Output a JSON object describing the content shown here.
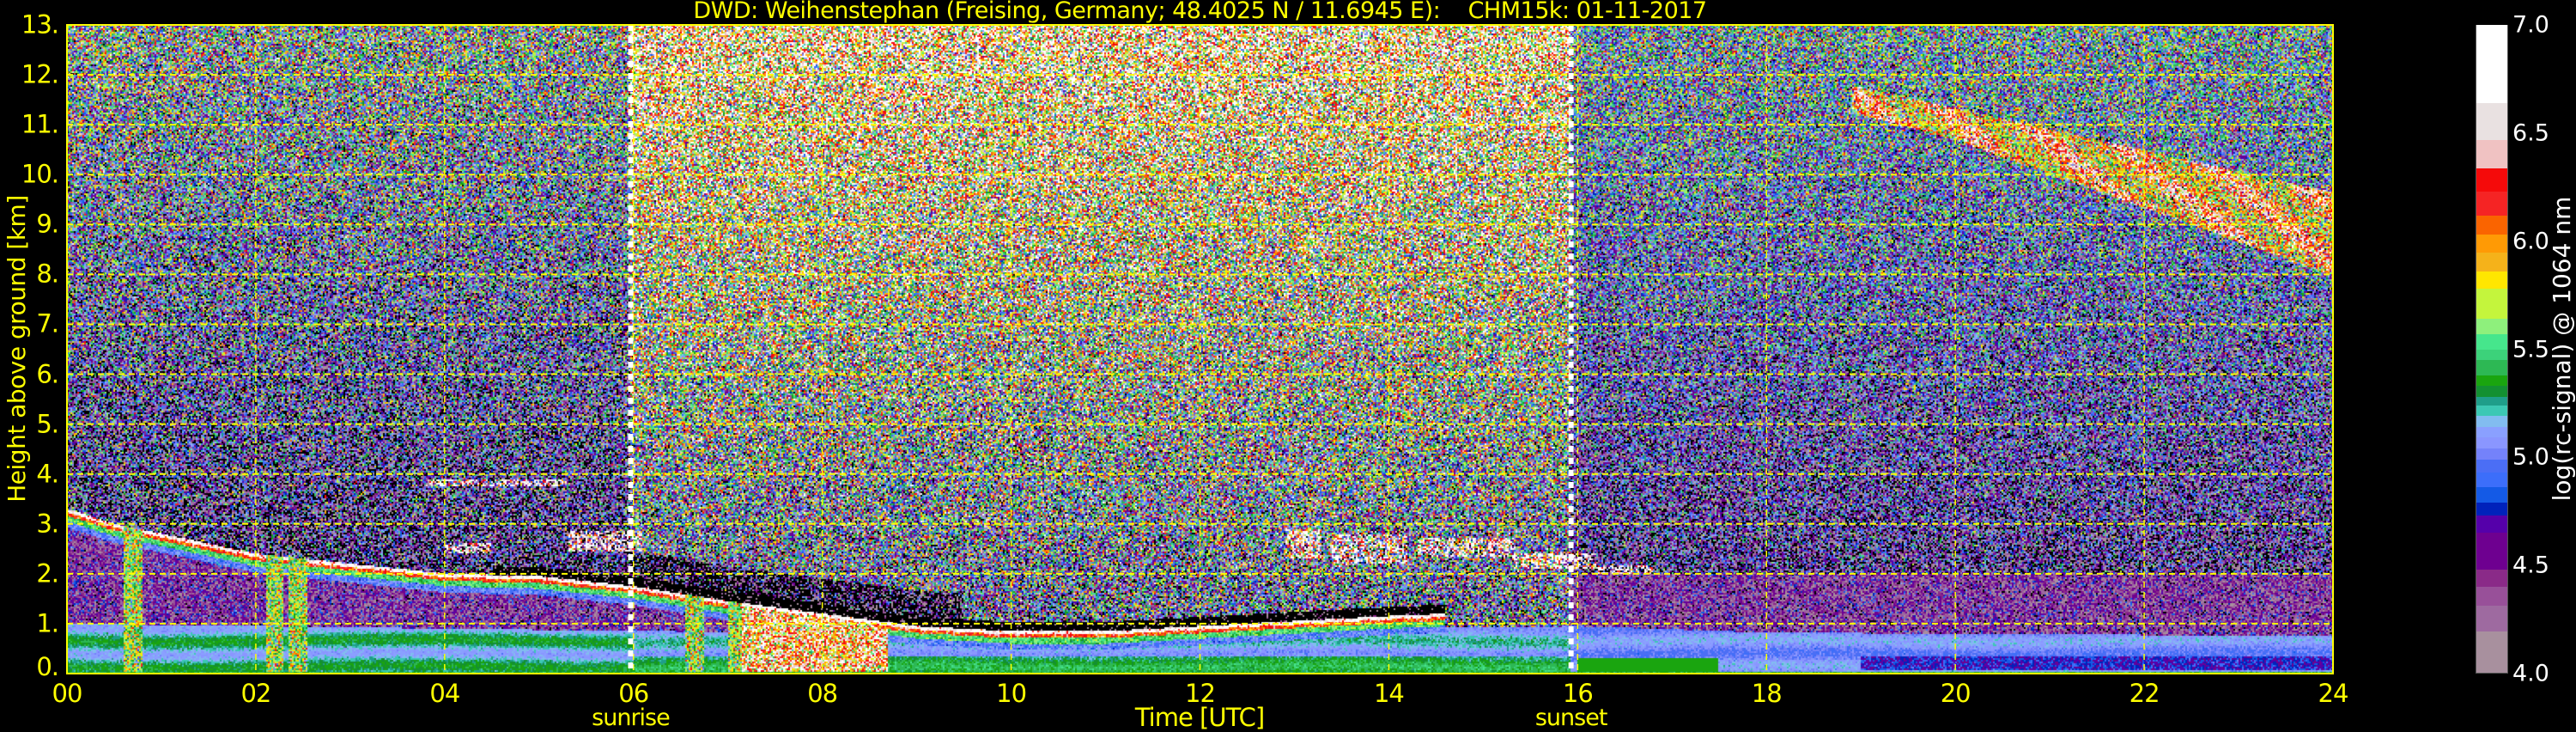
{
  "title": "DWD: Weihenstephan (Freising, Germany; 48.4025 N / 11.6945 E):    CHM15k: 01-11-2017",
  "chart_data": {
    "type": "heatmap",
    "xlabel": "Time [UTC]",
    "ylabel": "Height above ground [km]",
    "xlim": [
      0,
      24
    ],
    "ylim": [
      0,
      13
    ],
    "x_ticks": [
      {
        "value": 0,
        "label": "00"
      },
      {
        "value": 2,
        "label": "02"
      },
      {
        "value": 4,
        "label": "04"
      },
      {
        "value": 6,
        "label": "06"
      },
      {
        "value": 8,
        "label": "08"
      },
      {
        "value": 10,
        "label": "10"
      },
      {
        "value": 12,
        "label": "12"
      },
      {
        "value": 14,
        "label": "14"
      },
      {
        "value": 16,
        "label": "16"
      },
      {
        "value": 18,
        "label": "18"
      },
      {
        "value": 20,
        "label": "20"
      },
      {
        "value": 22,
        "label": "22"
      },
      {
        "value": 24,
        "label": "24"
      }
    ],
    "y_ticks": [
      {
        "value": 0,
        "label": "0."
      },
      {
        "value": 1,
        "label": "1."
      },
      {
        "value": 2,
        "label": "2."
      },
      {
        "value": 3,
        "label": "3."
      },
      {
        "value": 4,
        "label": "4."
      },
      {
        "value": 5,
        "label": "5."
      },
      {
        "value": 6,
        "label": "6."
      },
      {
        "value": 7,
        "label": "7."
      },
      {
        "value": 8,
        "label": "8."
      },
      {
        "value": 9,
        "label": "9."
      },
      {
        "value": 10,
        "label": "10."
      },
      {
        "value": 11,
        "label": "11."
      },
      {
        "value": 12,
        "label": "12."
      },
      {
        "value": 13,
        "label": "13."
      }
    ],
    "grid": true,
    "grid_color": "#ffff00",
    "markers": [
      {
        "label": "sunrise",
        "time": 5.97,
        "color": "#ffffff"
      },
      {
        "label": "sunset",
        "time": 15.93,
        "color": "#ffffff"
      }
    ],
    "colorbar": {
      "label": "log(rc-signal) @ 1064 nm",
      "range": [
        4.0,
        7.0
      ],
      "ticks": [
        "4.0",
        "4.5",
        "5.0",
        "5.5",
        "6.0",
        "6.5",
        "7.0"
      ],
      "below_range_color": "#000000",
      "levels": [
        {
          "from": 4.0,
          "color": "#a8909e"
        },
        {
          "from": 4.19,
          "color": "#9e6aa0"
        },
        {
          "from": 4.31,
          "color": "#985099"
        },
        {
          "from": 4.4,
          "color": "#8a2a88"
        },
        {
          "from": 4.48,
          "color": "#6e0090"
        },
        {
          "from": 4.65,
          "color": "#5500aa"
        },
        {
          "from": 4.73,
          "color": "#0022bb"
        },
        {
          "from": 4.79,
          "color": "#145ae6"
        },
        {
          "from": 4.86,
          "color": "#3c6efa"
        },
        {
          "from": 4.93,
          "color": "#4b6ef5"
        },
        {
          "from": 4.99,
          "color": "#7482fa"
        },
        {
          "from": 5.04,
          "color": "#8a96ff"
        },
        {
          "from": 5.09,
          "color": "#8aa0ff"
        },
        {
          "from": 5.14,
          "color": "#82bcf0"
        },
        {
          "from": 5.19,
          "color": "#3cc8b4"
        },
        {
          "from": 5.24,
          "color": "#1f9e8a"
        },
        {
          "from": 5.28,
          "color": "#139032"
        },
        {
          "from": 5.33,
          "color": "#1aa50f"
        },
        {
          "from": 5.38,
          "color": "#2db854"
        },
        {
          "from": 5.45,
          "color": "#3cd27a"
        },
        {
          "from": 5.5,
          "color": "#46e68c"
        },
        {
          "from": 5.57,
          "color": "#8ef07c"
        },
        {
          "from": 5.64,
          "color": "#c4f53c"
        },
        {
          "from": 5.78,
          "color": "#ffe600"
        },
        {
          "from": 5.86,
          "color": "#f5b21a"
        },
        {
          "from": 5.95,
          "color": "#ff9a05"
        },
        {
          "from": 6.03,
          "color": "#fa6400"
        },
        {
          "from": 6.12,
          "color": "#f52424"
        },
        {
          "from": 6.23,
          "color": "#f50a0a"
        },
        {
          "from": 6.34,
          "color": "#f0c2c2"
        },
        {
          "from": 6.47,
          "color": "#e9e1e1"
        },
        {
          "from": 6.64,
          "color": "#ffffff"
        }
      ]
    }
  }
}
